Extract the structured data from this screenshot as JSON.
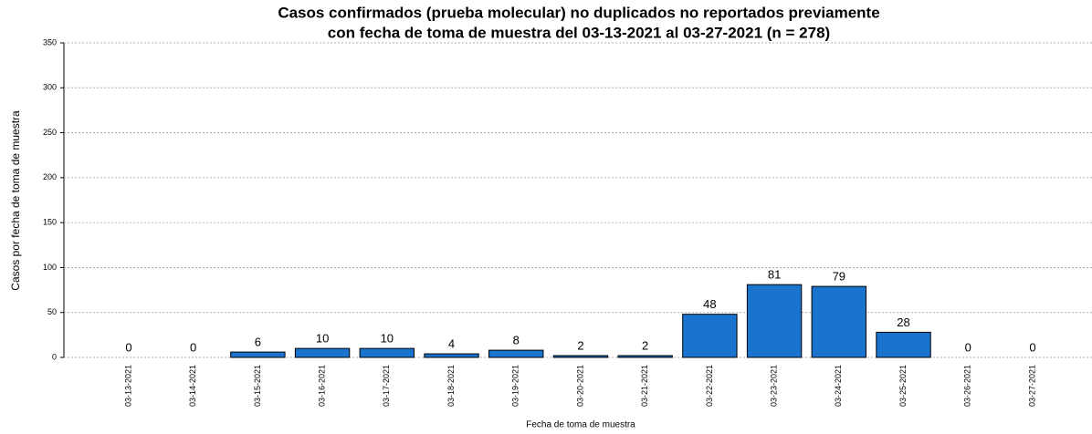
{
  "chart_data": {
    "type": "bar",
    "title": [
      "Casos confirmados (prueba molecular) no duplicados no reportados previamente",
      "con fecha de toma de muestra del 03-13-2021 al 03-27-2021 (n = 278)"
    ],
    "x_label": "Fecha de toma de muestra",
    "y_label": "Casos por fecha de toma de muestra",
    "categories": [
      "03-13-2021",
      "03-14-2021",
      "03-15-2021",
      "03-16-2021",
      "03-17-2021",
      "03-18-2021",
      "03-19-2021",
      "03-20-2021",
      "03-21-2021",
      "03-22-2021",
      "03-23-2021",
      "03-24-2021",
      "03-25-2021",
      "03-26-2021",
      "03-27-2021"
    ],
    "values": [
      0,
      0,
      6,
      10,
      10,
      4,
      8,
      2,
      2,
      48,
      81,
      79,
      28,
      0,
      0
    ],
    "color": "#1a73cc",
    "ylim": [
      0,
      350
    ],
    "yticks": [
      0,
      50,
      100,
      150,
      200,
      250,
      300,
      350
    ],
    "grid": true
  }
}
